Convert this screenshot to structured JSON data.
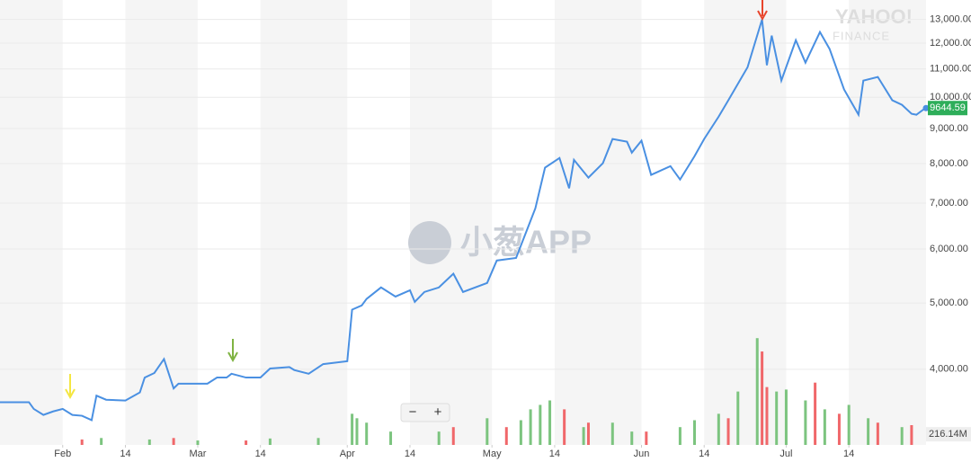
{
  "chart_data": {
    "type": "line",
    "log_scale_y": true,
    "grid": true,
    "xlim": [
      19,
      211
    ],
    "xticks": [
      {
        "value": 32,
        "label": "Feb"
      },
      {
        "value": 45,
        "label": "14"
      },
      {
        "value": 60,
        "label": "Mar"
      },
      {
        "value": 73,
        "label": "14"
      },
      {
        "value": 91,
        "label": "Apr"
      },
      {
        "value": 104,
        "label": "14"
      },
      {
        "value": 121,
        "label": "May"
      },
      {
        "value": 134,
        "label": "14"
      },
      {
        "value": 152,
        "label": "Jun"
      },
      {
        "value": 165,
        "label": "14"
      },
      {
        "value": 182,
        "label": "Jul"
      },
      {
        "value": 195,
        "label": "14"
      }
    ],
    "ylim": [
      3100,
      13880
    ],
    "yticks": [
      {
        "value": 4000,
        "label": "4,000.00"
      },
      {
        "value": 5000,
        "label": "5,000.00"
      },
      {
        "value": 6000,
        "label": "6,000.00"
      },
      {
        "value": 7000,
        "label": "7,000.00"
      },
      {
        "value": 8000,
        "label": "8,000.00"
      },
      {
        "value": 9000,
        "label": "9,000.00"
      },
      {
        "value": 10000,
        "label": "10,000.00"
      },
      {
        "value": 11000,
        "label": "11,000.00"
      },
      {
        "value": 12000,
        "label": "12,000.00"
      },
      {
        "value": 13000,
        "label": "13,000.00"
      }
    ],
    "y2lim": [
      0,
      9000
    ],
    "y2ticks": [
      {
        "value": 216.14,
        "label": "216.14M"
      }
    ],
    "last_price": 9644.59,
    "series": [
      {
        "color": "#4a90e2",
        "x": [
          19,
          21,
          25,
          26,
          28,
          30,
          32,
          34,
          36,
          38,
          39,
          41,
          45,
          48,
          49,
          51,
          53,
          55,
          56,
          62,
          64,
          66,
          67,
          70,
          73,
          75,
          79,
          80,
          83,
          86,
          91,
          92,
          94,
          95,
          98,
          101,
          104,
          105,
          107,
          110,
          113,
          115,
          120,
          122,
          126,
          130,
          132,
          135,
          137,
          138,
          141,
          144,
          146,
          149,
          150,
          152,
          154,
          158,
          160,
          163,
          165,
          168,
          170,
          174,
          177,
          178,
          179,
          181,
          184,
          186,
          189,
          191,
          194,
          197,
          198,
          201,
          204,
          206,
          208,
          209,
          211
        ],
        "values": [
          3580,
          3580,
          3580,
          3500,
          3430,
          3470,
          3500,
          3430,
          3420,
          3370,
          3660,
          3610,
          3600,
          3700,
          3890,
          3950,
          4140,
          3750,
          3810,
          3810,
          3890,
          3890,
          3940,
          3890,
          3890,
          4010,
          4030,
          3990,
          3940,
          4070,
          4110,
          4890,
          4960,
          5070,
          5270,
          5110,
          5220,
          5020,
          5190,
          5270,
          5520,
          5190,
          5350,
          5770,
          5820,
          6880,
          7890,
          8150,
          7360,
          8100,
          7630,
          8010,
          8690,
          8610,
          8300,
          8640,
          7700,
          7930,
          7580,
          8200,
          8690,
          9370,
          9900,
          11070,
          13000,
          11140,
          12310,
          10580,
          12120,
          11240,
          12460,
          11770,
          10270,
          9430,
          10580,
          10710,
          9900,
          9750,
          9460,
          9430,
          9660
        ]
      },
      {
        "type": "bar",
        "axis": "y2",
        "color": "#7cc47f",
        "x": [
          40,
          50,
          60,
          75,
          85,
          92,
          93,
          95,
          100,
          110,
          120,
          127,
          129,
          131,
          133,
          140,
          146,
          150,
          160,
          163,
          168,
          172,
          176,
          180,
          182,
          186,
          190,
          195,
          199,
          206
        ],
        "values": [
          140,
          110,
          90,
          130,
          140,
          630,
          540,
          450,
          270,
          270,
          540,
          500,
          720,
          810,
          900,
          360,
          450,
          270,
          360,
          500,
          630,
          1080,
          2160,
          1080,
          1120,
          900,
          720,
          810,
          540,
          360
        ]
      },
      {
        "type": "bar",
        "axis": "y2",
        "color": "#f0676a",
        "x": [
          36,
          55,
          70,
          113,
          124,
          136,
          141,
          153,
          170,
          177,
          178,
          188,
          193,
          201,
          208
        ],
        "values": [
          110,
          140,
          90,
          360,
          360,
          720,
          450,
          270,
          540,
          1890,
          1170,
          1260,
          630,
          450,
          400
        ]
      }
    ],
    "watermark": "小葱APP",
    "logo": "YAHOO!",
    "logo_sub": "FINANCE",
    "zoom_controls": [
      "−",
      "+"
    ]
  }
}
